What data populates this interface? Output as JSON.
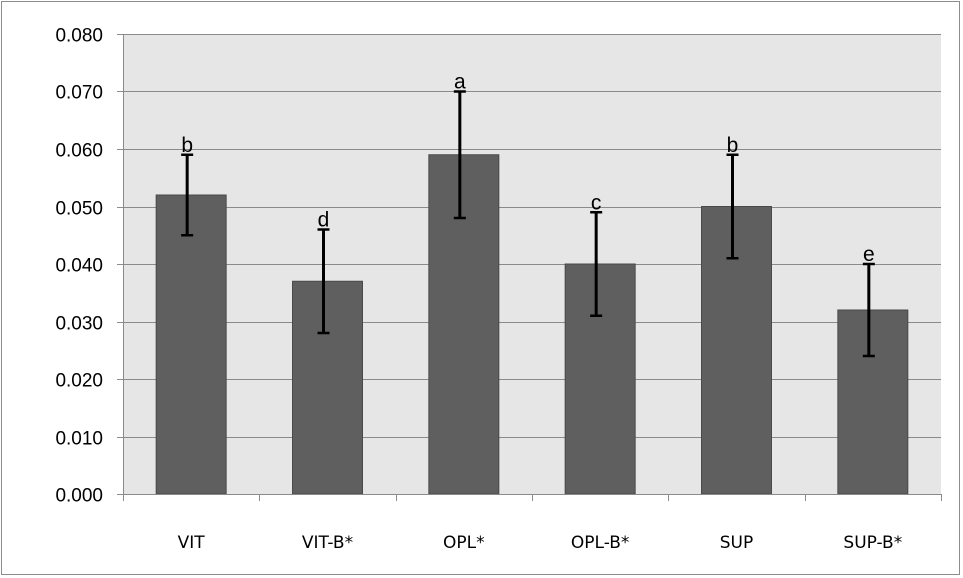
{
  "chart_data": {
    "type": "bar",
    "title": "",
    "xlabel": "",
    "ylabel": "",
    "categories": [
      "VIT",
      "VIT-B*",
      "OPL*",
      "OPL-B*",
      "SUP",
      "SUP-B*"
    ],
    "values": [
      0.052,
      0.037,
      0.059,
      0.04,
      0.05,
      0.032
    ],
    "error_upper": [
      0.059,
      0.046,
      0.07,
      0.049,
      0.059,
      0.04
    ],
    "error_lower": [
      0.045,
      0.028,
      0.048,
      0.031,
      0.041,
      0.024
    ],
    "significance_letters": [
      "b",
      "d",
      "a",
      "c",
      "b",
      "e"
    ],
    "ylim": [
      0,
      0.08
    ],
    "yticks": [
      "0.000",
      "0.010",
      "0.020",
      "0.030",
      "0.040",
      "0.050",
      "0.060",
      "0.070",
      "0.080"
    ],
    "grid": true,
    "legend": "none",
    "colors": {
      "bar_fill": "#5f5f5f",
      "bar_stroke": "#4a4a4a",
      "plot_background": "#e6e6e6",
      "grid": "#8a8a8a",
      "error_bar": "#000000",
      "frame": "#8c8c8c"
    }
  }
}
